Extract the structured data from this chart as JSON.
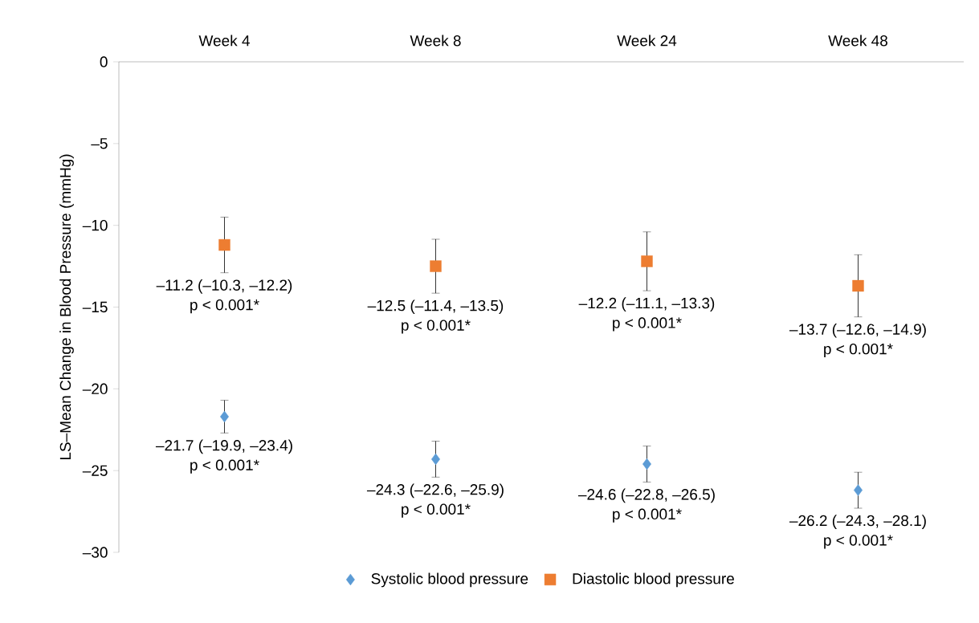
{
  "chart_data": {
    "type": "scatter",
    "ylabel": "LS–Mean Change in Blood Pressure (mmHg)",
    "categories": [
      "Week 4",
      "Week 8",
      "Week 24",
      "Week 48"
    ],
    "ylim": [
      -30,
      0
    ],
    "yticks": [
      0,
      {
        "value": -5,
        "label": "–5"
      },
      {
        "value": -10,
        "label": "–10"
      },
      {
        "value": -15,
        "label": "–15"
      },
      {
        "value": -20,
        "label": "–20"
      },
      {
        "value": -25,
        "label": "–25"
      },
      {
        "value": -30,
        "label": "–30"
      }
    ],
    "series": [
      {
        "name": "Systolic blood pressure",
        "color": "#5b9bd5",
        "marker": "diamond",
        "values": [
          -21.7,
          -24.3,
          -24.6,
          -26.2
        ],
        "errors": [
          1.0,
          1.1,
          1.1,
          1.1
        ],
        "value_labels": [
          "–21.7 (–19.9, –23.4)",
          "–24.3 (–22.6, –25.9)",
          "–24.6 (–22.8, –26.5)",
          "–26.2 (–24.3, –28.1)"
        ]
      },
      {
        "name": "Diastolic blood pressure",
        "color": "#ed7d31",
        "marker": "square",
        "values": [
          -11.2,
          -12.5,
          -12.2,
          -13.7
        ],
        "errors": [
          1.7,
          1.65,
          1.8,
          1.9
        ],
        "value_labels": [
          "–11.2 (–10.3, –12.2)",
          "–12.5 (–11.4, –13.5)",
          "–12.2 (–11.1, –13.3)",
          "–13.7 (–12.6, –14.9)"
        ]
      }
    ],
    "annotations": [
      "p < 0.001*",
      "p < 0.001*",
      "p < 0.001*",
      "p < 0.001*",
      "p < 0.001*",
      "p < 0.001*",
      "p < 0.001*",
      "p < 0.001*"
    ],
    "legend": "bottom",
    "grid": false
  }
}
